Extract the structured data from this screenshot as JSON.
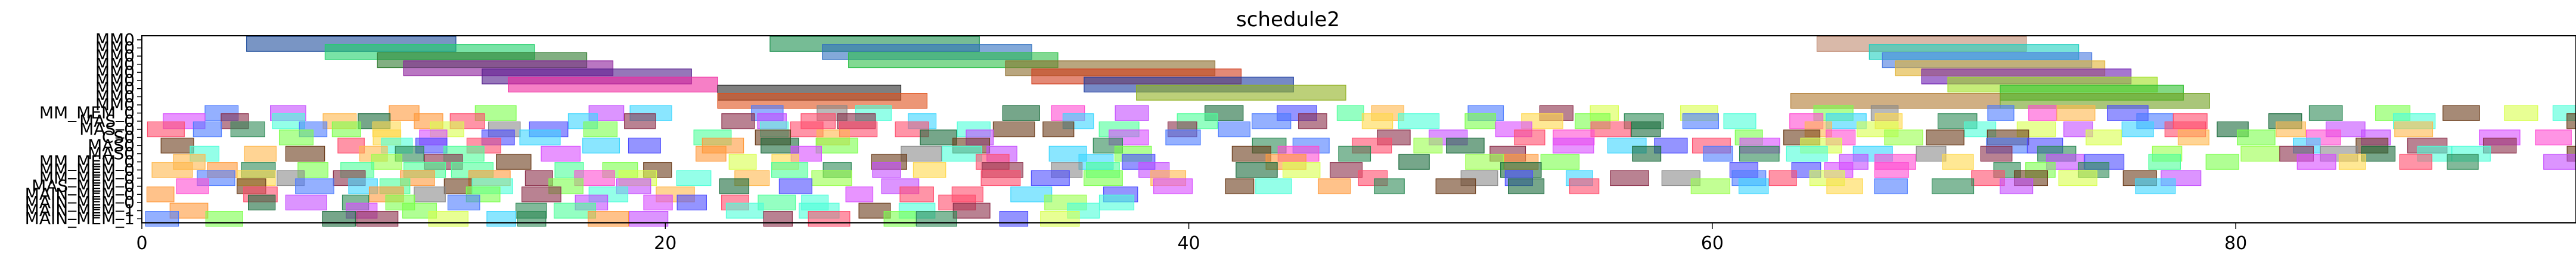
{
  "chart_data": {
    "type": "gantt",
    "title": "schedule2",
    "xlim": [
      0,
      93
    ],
    "xticks": [
      0,
      20,
      40,
      60,
      80
    ],
    "rows": [
      "MM0",
      "MM0",
      "MM0",
      "MM0",
      "MM0",
      "MM0",
      "MM0",
      "MM0",
      "MM0",
      "MM_MEM_0",
      "MAS_0",
      "MAS_0",
      "CS0",
      "MAS0",
      "MAS0",
      "MM_MEM_0",
      "MM_MEM_0",
      "MM_MEM_0",
      "MAS_MEM_0",
      "MAIN_MEM_0",
      "MAIN_MEM_0",
      "MAIN_MEM_1",
      "MAIN_MEM_1"
    ],
    "tasks": [
      {
        "row": 0,
        "start": 4,
        "end": 12,
        "color": "#1f4e9c"
      },
      {
        "row": 0,
        "start": 24,
        "end": 32,
        "color": "#1a8f4e"
      },
      {
        "row": 0,
        "start": 64,
        "end": 72,
        "color": "#c08a70"
      },
      {
        "row": 1,
        "start": 7,
        "end": 15,
        "color": "#20d06a"
      },
      {
        "row": 1,
        "start": 26,
        "end": 34,
        "color": "#3070c0"
      },
      {
        "row": 1,
        "start": 66,
        "end": 74,
        "color": "#20d0c0"
      },
      {
        "row": 2,
        "start": 9,
        "end": 17,
        "color": "#2e7a2e"
      },
      {
        "row": 2,
        "start": 27,
        "end": 35,
        "color": "#2ec04a"
      },
      {
        "row": 2,
        "start": 66.5,
        "end": 74.5,
        "color": "#4a7ae0"
      },
      {
        "row": 3,
        "start": 10,
        "end": 18,
        "color": "#8a1a9a"
      },
      {
        "row": 3,
        "start": 33,
        "end": 41,
        "color": "#8a6a2a"
      },
      {
        "row": 3,
        "start": 67,
        "end": 75,
        "color": "#e0b030"
      },
      {
        "row": 4,
        "start": 13,
        "end": 21,
        "color": "#501a8a"
      },
      {
        "row": 4,
        "start": 34,
        "end": 42,
        "color": "#d03a1a"
      },
      {
        "row": 4,
        "start": 68,
        "end": 76,
        "color": "#6a1ab0"
      },
      {
        "row": 5,
        "start": 14,
        "end": 22,
        "color": "#f02aa0"
      },
      {
        "row": 5,
        "start": 36,
        "end": 44,
        "color": "#1a3aa0"
      },
      {
        "row": 5,
        "start": 69,
        "end": 77,
        "color": "#a0e020"
      },
      {
        "row": 6,
        "start": 22,
        "end": 29,
        "color": "#2a2a2a"
      },
      {
        "row": 6,
        "start": 38,
        "end": 46,
        "color": "#90b020"
      },
      {
        "row": 6,
        "start": 71,
        "end": 78,
        "color": "#30c030"
      },
      {
        "row": 7,
        "start": 22,
        "end": 30,
        "color": "#e0501a"
      },
      {
        "row": 7,
        "start": 63,
        "end": 71,
        "color": "#b07a30"
      },
      {
        "row": 7,
        "start": 71,
        "end": 79,
        "color": "#70a020"
      }
    ],
    "stripe_rows": [
      9,
      10,
      11,
      12,
      13,
      14,
      15,
      16,
      17,
      18,
      19,
      20,
      21,
      22
    ],
    "palette": [
      "#ff4d6d",
      "#4d7cff",
      "#7cff4d",
      "#ff9a3c",
      "#3cd6ff",
      "#c44dff",
      "#ffd84d",
      "#4dff9a",
      "#ff4dd2",
      "#8a8a8a",
      "#2e8b57",
      "#8b2e4a",
      "#4d4dff",
      "#9aff4d",
      "#ffb84d",
      "#4dffd8",
      "#d84dff",
      "#d8ff4d",
      "#6b3c1a",
      "#1a6b3c"
    ]
  }
}
